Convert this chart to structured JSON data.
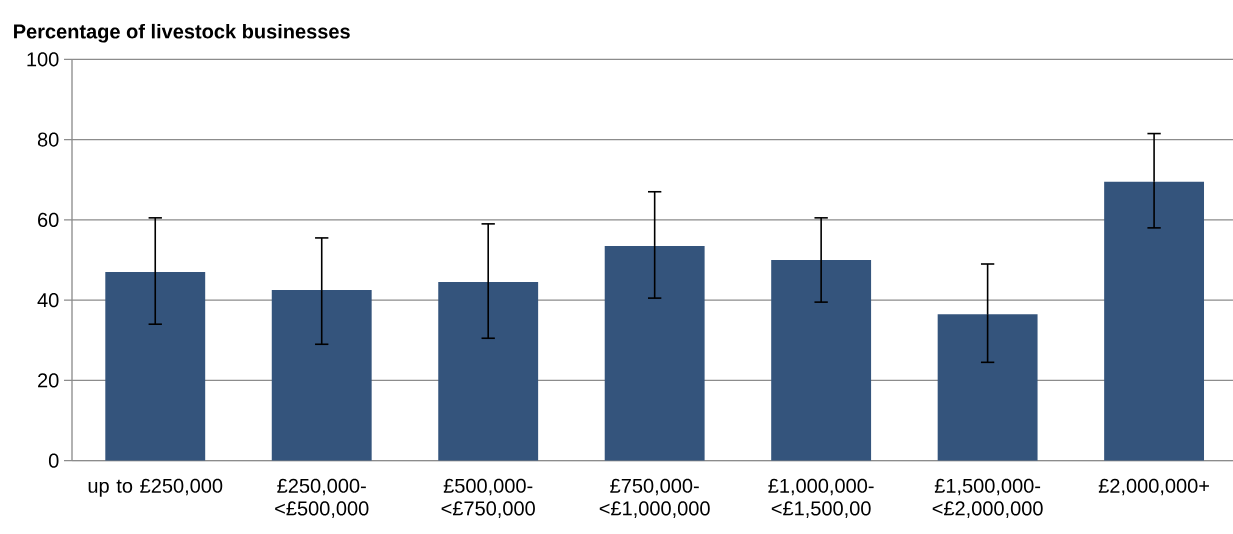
{
  "chart_data": {
    "type": "bar",
    "ylabel": "Percentage of livestock businesses",
    "categories": [
      "up to £250,000",
      "£250,000- <£500,000",
      "£500,000- <£750,000",
      "£750,000- <£1,000,000",
      "£1,000,000- <£1,500,00",
      "£1,500,000- <£2,000,000",
      "£2,000,000+"
    ],
    "values": [
      47,
      42.5,
      44.5,
      53.5,
      50,
      36.5,
      69.5
    ],
    "errors": [
      [
        34,
        60.5
      ],
      [
        29,
        55.5
      ],
      [
        30.5,
        59
      ],
      [
        40.5,
        67
      ],
      [
        39.5,
        60.5
      ],
      [
        24.5,
        49
      ],
      [
        58,
        81.5
      ]
    ],
    "color": "#34547c",
    "ylim": [
      0,
      100
    ],
    "yticks": [
      0,
      20,
      40,
      60,
      80,
      100
    ],
    "grid": "y"
  }
}
